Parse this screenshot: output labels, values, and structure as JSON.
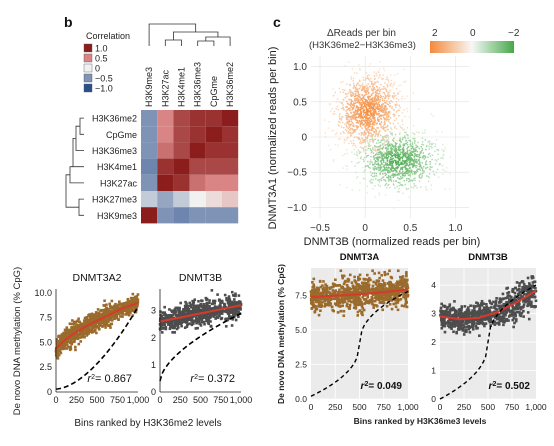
{
  "colors": {
    "heat_high": "#8b1d1d",
    "heat_mid": "#d98585",
    "heat_zero": "#f1f1f1",
    "heat_neg": "#7f93b6",
    "heat_low": "#2b4f8a",
    "orange": "#f48a3a",
    "green": "#45a84a",
    "brown_points": "#9a6b2c",
    "gray_points": "#4d4d4d",
    "fit_red": "#d63a2d",
    "panel_bg": "#ebebeb"
  },
  "panel_b": {
    "label": "b",
    "legend_title": "Correlation",
    "legend_items": [
      {
        "label": "1.0",
        "color": "#8b1d1d"
      },
      {
        "label": "0.5",
        "color": "#d98585"
      },
      {
        "label": "0",
        "color": "#f1f1f1"
      },
      {
        "label": "−0.5",
        "color": "#7f93b6"
      },
      {
        "label": "−1.0",
        "color": "#2b4f8a"
      }
    ],
    "columns": [
      "H3K9me3",
      "H3K27ac",
      "H3K4me1",
      "H3K36me3",
      "CpGme",
      "H3K36me2"
    ],
    "rows": [
      "H3K36me2",
      "CpGme",
      "H3K36me3",
      "H3K4me1",
      "H3K27ac",
      "H3K27me3",
      "H3K9me3"
    ]
  },
  "panel_c": {
    "label": "c",
    "legend_title": "ΔReads per bin",
    "legend_subtitle": "(H3K36me2−H3K36me3)",
    "legend_ticks": [
      "2",
      "0",
      "−2"
    ],
    "ylabel": "DNMT3A1 (normalized reads per bin)",
    "xlabel": "DNMT3B (normalized reads per bin)"
  },
  "panel_d": {
    "ylabel": "De novo DNA methylation (% CpG)",
    "xlabel": "Bins ranked by H3K36me2 levels",
    "r2_labels": [
      "= 0.867",
      "= 0.372"
    ]
  },
  "panel_e": {
    "ylabel": "De novo DNA methylation (% CpG)",
    "xlabel": "Bins ranked by H3K36me3 levels",
    "r2_labels": [
      "= 0.049",
      "= 0.502"
    ]
  },
  "chart_data": [
    {
      "type": "heatmap",
      "title": "",
      "columns": [
        "H3K9me3",
        "H3K27ac",
        "H3K4me1",
        "H3K36me3",
        "CpGme",
        "H3K36me2"
      ],
      "rows": [
        "H3K36me2",
        "CpGme",
        "H3K36me3",
        "H3K4me1",
        "H3K27ac",
        "H3K27me3",
        "H3K9me3"
      ],
      "values": [
        [
          -0.5,
          0.5,
          0.8,
          0.9,
          0.9,
          1.0
        ],
        [
          -0.5,
          0.5,
          0.8,
          0.9,
          1.0,
          0.9
        ],
        [
          -0.5,
          0.6,
          0.8,
          1.0,
          0.9,
          0.9
        ],
        [
          -0.6,
          0.9,
          1.0,
          0.8,
          0.8,
          0.8
        ],
        [
          -0.5,
          1.0,
          0.9,
          0.6,
          0.5,
          0.5
        ],
        [
          -0.2,
          -0.4,
          -0.2,
          0.0,
          0.1,
          0.2
        ],
        [
          1.0,
          -0.5,
          -0.6,
          -0.5,
          -0.5,
          -0.5
        ]
      ],
      "legend": "Correlation",
      "range": [
        -1.0,
        1.0
      ]
    },
    {
      "type": "scatter",
      "title": "",
      "xlabel": "DNMT3B (normalized reads per bin)",
      "ylabel": "DNMT3A1 (normalized reads per bin)",
      "xlim": [
        -0.6,
        1.15
      ],
      "ylim": [
        -1.15,
        1.15
      ],
      "xticks": [
        "−0.5",
        "0",
        "0.5",
        "1.0"
      ],
      "yticks": [
        "1.0",
        "0.5",
        "0",
        "−0.5",
        "−1.0"
      ],
      "clusters": [
        {
          "name": "orange",
          "center_x": 0.02,
          "center_y": 0.38,
          "spread_x": 0.17,
          "spread_y": 0.24
        },
        {
          "name": "green",
          "center_x": 0.36,
          "center_y": -0.32,
          "spread_x": 0.22,
          "spread_y": 0.2
        }
      ],
      "colorbar": {
        "title": "ΔReads per bin",
        "range": [
          2,
          -2
        ]
      },
      "grid": true
    },
    {
      "type": "scatter",
      "title": "DNMT3A2",
      "xlabel": "Bins ranked by H3K36me2 levels",
      "ylabel": "De novo DNA methylation (% CpG)",
      "xlim": [
        0,
        1000
      ],
      "ylim": [
        0,
        10
      ],
      "xticks": [
        "0",
        "250",
        "500",
        "750",
        "1,000"
      ],
      "yticks": [
        "10.0",
        "7.5",
        "5.0",
        "2.5",
        "0"
      ],
      "fit_x": [
        0,
        100,
        200,
        300,
        400,
        500,
        600,
        700,
        800,
        900,
        1000
      ],
      "fit_y": [
        4.4,
        5.2,
        5.8,
        6.3,
        6.8,
        7.2,
        7.6,
        8.0,
        8.4,
        8.7,
        9.0
      ],
      "r2": 0.867
    },
    {
      "type": "scatter",
      "title": "DNMT3B",
      "xlabel": "Bins ranked by H3K36me2 levels",
      "ylim": [
        0,
        4
      ],
      "xticks": [
        "0",
        "250",
        "500",
        "750",
        "1,000"
      ],
      "yticks": [
        "3",
        "2",
        "1",
        "0"
      ],
      "fit_x": [
        0,
        250,
        500,
        750,
        1000
      ],
      "fit_y": [
        2.6,
        2.75,
        2.9,
        3.05,
        3.2
      ],
      "r2": 0.372
    },
    {
      "type": "scatter",
      "title": "DNMT3A",
      "xlabel": "Bins ranked by H3K36me3 levels",
      "ylabel": "De novo DNA methylation (% CpG)",
      "xlim": [
        0,
        1000
      ],
      "ylim": [
        0,
        10
      ],
      "xticks": [
        "0",
        "250",
        "500",
        "750",
        "1,000"
      ],
      "yticks": [
        "7.5",
        "5.0",
        "2.5",
        "0.0"
      ],
      "fit_x": [
        0,
        250,
        500,
        750,
        1000
      ],
      "fit_y": [
        7.4,
        7.5,
        7.6,
        7.75,
        7.95
      ],
      "r2": 0.049
    },
    {
      "type": "scatter",
      "title": "DNMT3B",
      "xlabel": "Bins ranked by H3K36me3 levels",
      "ylim": [
        0,
        4.6
      ],
      "xticks": [
        "0",
        "250",
        "500",
        "750",
        "1,000"
      ],
      "yticks": [
        "4",
        "3",
        "2",
        "1",
        "0"
      ],
      "fit_x": [
        0,
        200,
        400,
        600,
        800,
        1000
      ],
      "fit_y": [
        2.9,
        2.8,
        2.85,
        3.05,
        3.4,
        3.8
      ],
      "r2": 0.502
    }
  ]
}
